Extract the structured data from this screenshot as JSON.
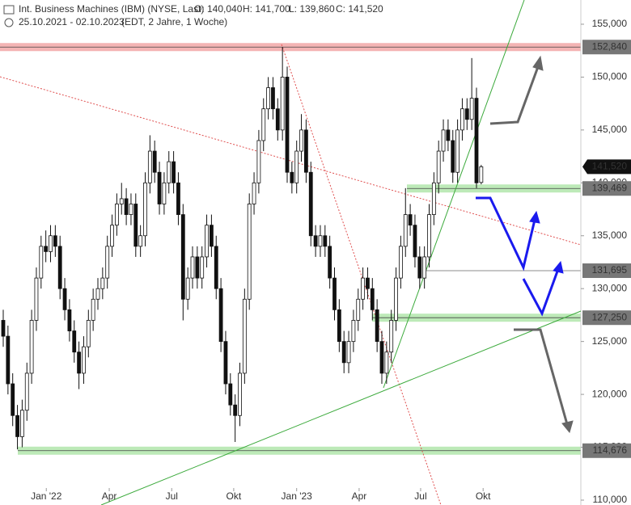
{
  "chart_data": {
    "type": "candlestick",
    "title": "Int. Business Machines (IBM) (NYSE, Last)",
    "ohlc_labels": [
      "O: 140,040",
      "H: 141,700",
      "L: 139,860",
      "C: 141,520"
    ],
    "subtitle": "25.10.2021 - 02.10.2023",
    "subtitle_note": "(EDT, 2 Jahre, 1 Woche)",
    "open": [
      127,
      125.5,
      121,
      118,
      116,
      118.5,
      122,
      127,
      131,
      134,
      133.5,
      135,
      134,
      130,
      128,
      126,
      124,
      122,
      124.5,
      127,
      129,
      130,
      131,
      134,
      136,
      138,
      138.5,
      137,
      138,
      134,
      135,
      140,
      143,
      141,
      138,
      140,
      142,
      140,
      137,
      129,
      131,
      133,
      131,
      133,
      136,
      134,
      130,
      125,
      121,
      119,
      118,
      122,
      129,
      138,
      140,
      144,
      147,
      149,
      147,
      145,
      150,
      141,
      140,
      143,
      145,
      141,
      135,
      134,
      135,
      134,
      131,
      128,
      125,
      123,
      125,
      127,
      129,
      131,
      130,
      128,
      125,
      122,
      124,
      127,
      131,
      134,
      137,
      136,
      133,
      131,
      133,
      137,
      140,
      143,
      145,
      144,
      141,
      145,
      147,
      146,
      148,
      140.04
    ],
    "high": [
      128,
      126.5,
      122,
      119,
      119.5,
      123,
      128,
      132,
      135,
      135.5,
      136,
      136,
      135,
      131,
      129,
      127,
      125,
      125.5,
      128,
      130,
      131,
      132,
      135,
      137,
      139,
      140,
      139.5,
      139,
      139,
      136,
      141,
      144.5,
      144,
      142,
      141,
      143,
      143,
      141,
      138,
      132,
      134,
      134,
      134,
      137,
      137,
      135,
      131,
      126,
      122,
      120,
      123,
      130,
      139,
      141,
      145,
      148,
      150,
      150,
      148,
      152.84,
      151,
      142,
      144,
      146.5,
      146,
      142,
      136,
      136,
      136,
      135,
      132,
      129,
      126,
      126,
      128,
      130,
      132,
      132,
      131,
      129,
      126,
      125,
      128,
      132,
      135,
      139.5,
      138,
      137,
      134,
      134,
      138,
      141,
      144,
      146,
      146,
      145,
      146,
      148,
      148,
      151.8,
      149,
      141.7
    ],
    "low": [
      124.5,
      120,
      117,
      114.8,
      115,
      117.5,
      121,
      126,
      130,
      132.5,
      132.5,
      133,
      129,
      127,
      125,
      123,
      120.5,
      121,
      123.5,
      126,
      128,
      129,
      130,
      133,
      135,
      137,
      136,
      136,
      133,
      133,
      134,
      139,
      140,
      137,
      137,
      139,
      139,
      136,
      127,
      128,
      130,
      130,
      130,
      132,
      133,
      129,
      124,
      120,
      118,
      115.5,
      117,
      121,
      128,
      137,
      139,
      143,
      146,
      146,
      144,
      144,
      140,
      139,
      139,
      142,
      140,
      134,
      133,
      133,
      133,
      130,
      127,
      124,
      122,
      122,
      124,
      126,
      128,
      129,
      127,
      124,
      121,
      121,
      123,
      126,
      130,
      133,
      135,
      132,
      130,
      130,
      132,
      136,
      139,
      142,
      143,
      140,
      140,
      144,
      145,
      145,
      139.5,
      139.86
    ],
    "close": [
      125.5,
      121,
      118,
      116,
      118.5,
      122,
      127,
      131,
      134,
      133.5,
      135,
      134,
      130,
      128,
      126,
      124,
      122,
      124.5,
      127,
      129,
      130,
      131,
      134,
      136,
      138,
      138.5,
      137,
      138,
      134,
      135,
      140,
      143,
      141,
      138,
      140,
      142,
      140,
      137,
      129,
      131,
      133,
      131,
      133,
      136,
      134,
      130,
      125,
      121,
      119,
      118,
      122,
      129,
      138,
      140,
      144,
      147,
      149,
      147,
      145,
      150,
      141,
      140,
      143,
      145,
      141,
      135,
      134,
      135,
      134,
      131,
      128,
      125,
      123,
      125,
      127,
      129,
      131,
      130,
      128,
      125,
      122,
      124,
      127,
      131,
      134,
      137,
      136,
      133,
      131,
      133,
      137,
      140,
      143,
      145,
      144,
      141,
      145,
      147,
      146,
      148,
      140,
      141.52
    ],
    "ylim": [
      109.54,
      157.29
    ],
    "yticks": [
      {
        "value": 110,
        "label": "110,000"
      },
      {
        "value": 115,
        "label": "115,000"
      },
      {
        "value": 120,
        "label": "120,000"
      },
      {
        "value": 125,
        "label": "125,000"
      },
      {
        "value": 130,
        "label": "130,000"
      },
      {
        "value": 135,
        "label": "135,000"
      },
      {
        "value": 140,
        "label": "140,000"
      },
      {
        "value": 145,
        "label": "145,000"
      },
      {
        "value": 150,
        "label": "150,000"
      },
      {
        "value": 155,
        "label": "155,000"
      }
    ],
    "xticks": [
      {
        "value": 9.1,
        "label": "Jan '22"
      },
      {
        "value": 22.4,
        "label": "Apr"
      },
      {
        "value": 35.6,
        "label": "Jul"
      },
      {
        "value": 48.7,
        "label": "Okt"
      },
      {
        "value": 62,
        "label": "Jan '23"
      },
      {
        "value": 75.2,
        "label": "Apr"
      },
      {
        "value": 88.2,
        "label": "Jul"
      },
      {
        "value": 101.4,
        "label": "Okt"
      }
    ],
    "levels": [
      {
        "value": 152.84,
        "label": "152,840",
        "zone": "#f4b4b4"
      },
      {
        "value": 139.469,
        "label": "139,469",
        "zone": "#bdeab8"
      },
      {
        "value": 131.695,
        "label": "131,695"
      },
      {
        "value": 127.25,
        "label": "127,250",
        "zone": "#bdeab8"
      },
      {
        "value": 114.676,
        "label": "114,676",
        "zone": "#bdeab8"
      }
    ],
    "current_price": {
      "value": 141.52,
      "label": "141,520"
    }
  }
}
